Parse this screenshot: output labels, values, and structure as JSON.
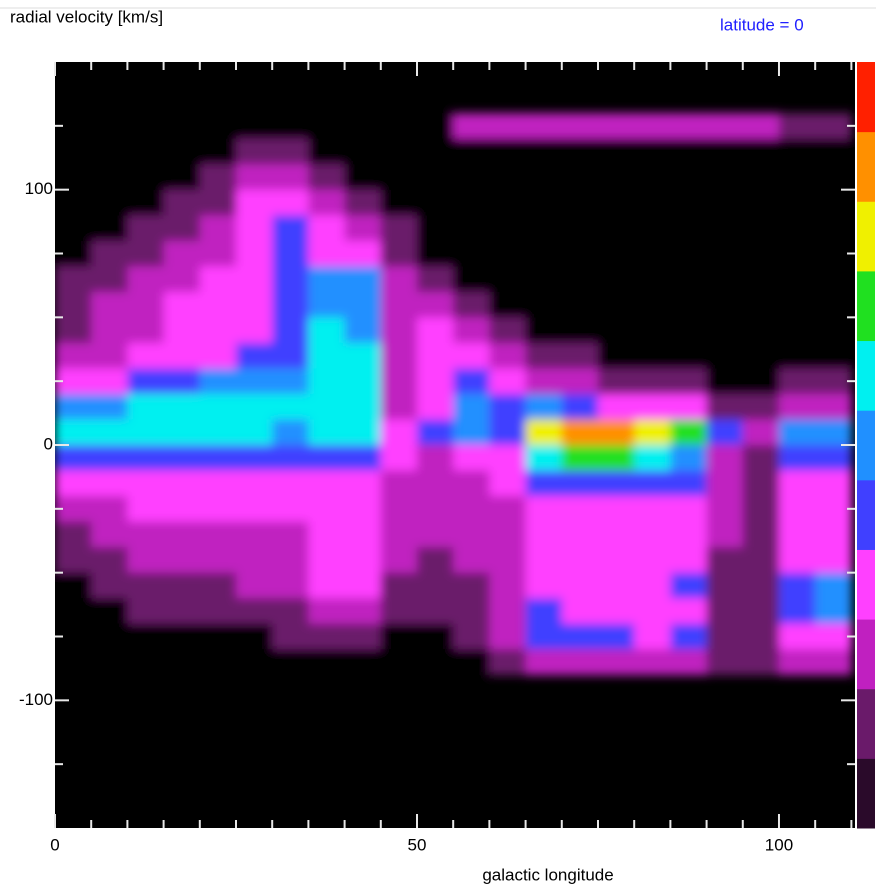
{
  "chart_data": {
    "type": "heatmap",
    "title": "radial velocity [km/s]",
    "subtitle": "latitude = 0",
    "x_label": "galactic longitude",
    "xlim": [
      0,
      110.5
    ],
    "ylim": [
      -150,
      150
    ],
    "xticks": [
      0,
      50,
      100
    ],
    "xminor_ticks": [
      5,
      10,
      15,
      20,
      25,
      30,
      35,
      40,
      45,
      55,
      60,
      65,
      70,
      75,
      80,
      85,
      90,
      95,
      105,
      110
    ],
    "yticks": [
      -100,
      0,
      100
    ],
    "yminor_ticks": [
      -125,
      -75,
      -50,
      -25,
      25,
      50,
      75,
      125
    ],
    "x": [
      2.5,
      7.5,
      12.5,
      17.5,
      22.5,
      27.5,
      32.5,
      37.5,
      42.5,
      47.5,
      52.5,
      57.5,
      62.5,
      67.5,
      72.5,
      77.5,
      82.5,
      87.5,
      92.5,
      97.5,
      102.5,
      107.5
    ],
    "y": [
      125,
      115,
      105,
      95,
      85,
      75,
      65,
      55,
      45,
      35,
      25,
      15,
      5,
      -5,
      -15,
      -25,
      -35,
      -45,
      -55,
      -65,
      -75,
      -85
    ],
    "x_bin_width": 5,
    "y_bin_width": 10,
    "colorscale": [
      "#2a0a2a",
      "#6a1a6a",
      "#c020c0",
      "#ff40ff",
      "#4040ff",
      "#2090ff",
      "#00f0f0",
      "#20e020",
      "#f0f000",
      "#ff9000",
      "#ff2000"
    ],
    "background": "#000000",
    "values": [
      [
        0,
        0,
        0,
        0,
        0,
        0,
        0,
        0,
        0,
        0,
        0,
        2,
        2,
        2,
        2,
        2,
        2,
        2,
        2,
        2,
        1,
        1
      ],
      [
        0,
        0,
        0,
        0,
        0,
        1,
        1,
        0,
        0,
        0,
        0,
        0,
        0,
        0,
        0,
        0,
        0,
        0,
        0,
        0,
        0,
        0
      ],
      [
        0,
        0,
        0,
        0,
        1,
        2,
        2,
        1,
        0,
        0,
        0,
        0,
        0,
        0,
        0,
        0,
        0,
        0,
        0,
        0,
        0,
        0
      ],
      [
        0,
        0,
        0,
        1,
        1,
        3,
        3,
        2,
        1,
        0,
        0,
        0,
        0,
        0,
        0,
        0,
        0,
        0,
        0,
        0,
        0,
        0
      ],
      [
        0,
        0,
        1,
        1,
        2,
        3,
        4,
        3,
        2,
        1,
        0,
        0,
        0,
        0,
        0,
        0,
        0,
        0,
        0,
        0,
        0,
        0
      ],
      [
        0,
        1,
        1,
        2,
        2,
        3,
        4,
        3,
        3,
        1,
        0,
        0,
        0,
        0,
        0,
        0,
        0,
        0,
        0,
        0,
        0,
        0
      ],
      [
        1,
        1,
        2,
        2,
        3,
        3,
        4,
        5,
        5,
        2,
        1,
        0,
        0,
        0,
        0,
        0,
        0,
        0,
        0,
        0,
        0,
        0
      ],
      [
        1,
        2,
        2,
        3,
        3,
        3,
        4,
        5,
        5,
        2,
        2,
        1,
        0,
        0,
        0,
        0,
        0,
        0,
        0,
        0,
        0,
        0
      ],
      [
        1,
        2,
        2,
        3,
        3,
        3,
        4,
        6,
        5,
        2,
        3,
        2,
        1,
        0,
        0,
        0,
        0,
        0,
        0,
        0,
        0,
        0
      ],
      [
        2,
        2,
        3,
        3,
        3,
        4,
        4,
        6,
        6,
        2,
        3,
        3,
        2,
        1,
        1,
        0,
        0,
        0,
        0,
        0,
        0,
        0
      ],
      [
        3,
        3,
        4,
        4,
        5,
        5,
        5,
        6,
        6,
        2,
        3,
        4,
        3,
        2,
        2,
        1,
        1,
        1,
        0,
        0,
        1,
        1
      ],
      [
        5,
        5,
        6,
        6,
        6,
        6,
        6,
        6,
        6,
        2,
        3,
        5,
        4,
        5,
        4,
        3,
        3,
        3,
        1,
        1,
        2,
        2
      ],
      [
        6,
        6,
        6,
        6,
        6,
        6,
        5,
        6,
        6,
        3,
        4,
        5,
        4,
        8,
        9,
        9,
        8,
        7,
        4,
        2,
        5,
        5
      ],
      [
        4,
        4,
        4,
        4,
        4,
        4,
        4,
        4,
        4,
        3,
        2,
        3,
        3,
        6,
        7,
        7,
        6,
        5,
        2,
        1,
        4,
        4
      ],
      [
        3,
        3,
        3,
        3,
        3,
        3,
        3,
        3,
        3,
        2,
        2,
        2,
        3,
        4,
        4,
        4,
        4,
        4,
        2,
        1,
        3,
        3
      ],
      [
        2,
        2,
        3,
        3,
        3,
        3,
        3,
        3,
        3,
        2,
        2,
        2,
        2,
        3,
        3,
        3,
        3,
        3,
        2,
        1,
        3,
        3
      ],
      [
        1,
        2,
        2,
        2,
        2,
        2,
        2,
        3,
        3,
        2,
        2,
        2,
        2,
        3,
        3,
        3,
        3,
        3,
        2,
        1,
        3,
        3
      ],
      [
        1,
        1,
        2,
        2,
        2,
        2,
        2,
        3,
        3,
        2,
        1,
        2,
        2,
        3,
        3,
        3,
        3,
        3,
        1,
        1,
        3,
        3
      ],
      [
        0,
        1,
        1,
        1,
        1,
        2,
        2,
        3,
        3,
        1,
        1,
        1,
        2,
        3,
        3,
        3,
        3,
        4,
        1,
        1,
        4,
        5
      ],
      [
        0,
        0,
        1,
        1,
        1,
        1,
        1,
        2,
        2,
        1,
        1,
        1,
        2,
        4,
        3,
        3,
        3,
        3,
        1,
        1,
        4,
        5
      ],
      [
        0,
        0,
        0,
        0,
        0,
        0,
        1,
        1,
        1,
        0,
        0,
        1,
        2,
        4,
        4,
        4,
        3,
        4,
        1,
        1,
        3,
        3
      ],
      [
        0,
        0,
        0,
        0,
        0,
        0,
        0,
        0,
        0,
        0,
        0,
        0,
        1,
        2,
        2,
        2,
        2,
        2,
        1,
        1,
        2,
        2
      ]
    ]
  }
}
